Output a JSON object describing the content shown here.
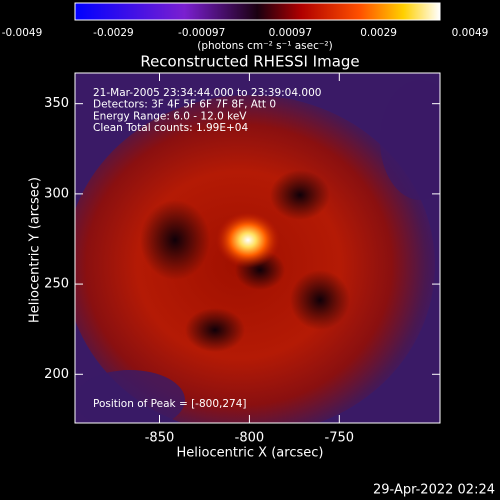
{
  "chart_data": {
    "type": "image",
    "title": "Reconstructed RHESSI Image",
    "colorbar": {
      "label": "(photons cm⁻² s⁻¹ asec⁻²)",
      "lim": [
        -0.0049,
        0.0049
      ],
      "ticks": [
        -0.0049,
        -0.0029,
        -0.00097,
        0.00097,
        0.0029,
        0.0049
      ]
    },
    "x_label": "Heliocentric X (arcsec)",
    "y_label": "Heliocentric Y (arcsec)",
    "xlim": [
      -897,
      -694
    ],
    "ylim": [
      173,
      367
    ],
    "xticks": [
      -850,
      -800,
      -750
    ],
    "yticks": [
      200,
      250,
      300,
      350
    ],
    "annotations": [
      "21-Mar-2005 23:34:44.000 to 23:39:04.000",
      "Detectors: 3F 4F 5F 6F 7F 8F, Att 0",
      "Energy Range: 6.0 - 12.0 keV",
      "Clean    Total counts: 1.99E+04"
    ],
    "peak_label": "Position of Peak = [-800,274]",
    "timestamp": "29-Apr-2022 02:24"
  }
}
